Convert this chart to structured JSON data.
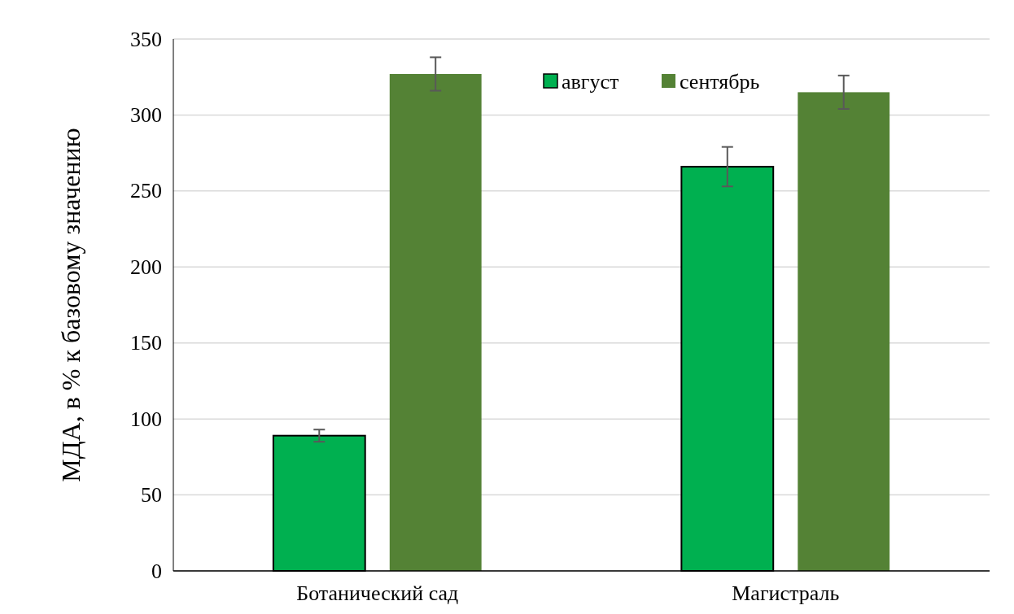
{
  "chart_data": {
    "type": "bar",
    "ylabel": "МДА, в % к базовому значению",
    "categories": [
      "Ботанический сад",
      "Магистраль"
    ],
    "series": [
      {
        "name": "август",
        "color": "#00b050",
        "values": [
          89,
          266
        ],
        "errors": [
          4,
          13
        ]
      },
      {
        "name": "сентябрь",
        "color": "#548235",
        "values": [
          327,
          315
        ],
        "errors": [
          11,
          11
        ]
      }
    ],
    "ylim": [
      0,
      350
    ],
    "yticks": [
      0,
      50,
      100,
      150,
      200,
      250,
      300,
      350
    ],
    "grid": "y",
    "legend": "top"
  }
}
